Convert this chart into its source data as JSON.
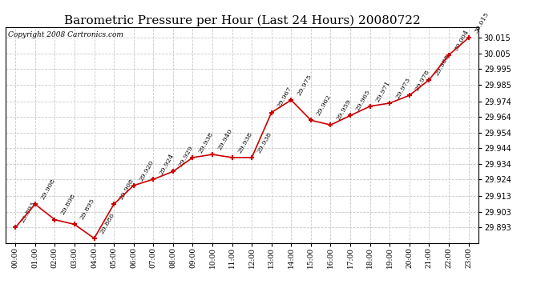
{
  "title": "Barometric Pressure per Hour (Last 24 Hours) 20080722",
  "copyright": "Copyright 2008 Cartronics.com",
  "hours": [
    0,
    1,
    2,
    3,
    4,
    5,
    6,
    7,
    8,
    9,
    10,
    11,
    12,
    13,
    14,
    15,
    16,
    17,
    18,
    19,
    20,
    21,
    22,
    23
  ],
  "values": [
    29.893,
    29.908,
    29.898,
    29.895,
    29.886,
    29.908,
    29.92,
    29.924,
    29.929,
    29.938,
    29.94,
    29.938,
    29.938,
    29.967,
    29.975,
    29.962,
    29.959,
    29.965,
    29.971,
    29.973,
    29.978,
    29.988,
    30.004,
    30.015
  ],
  "ylim_min": 29.883,
  "ylim_max": 30.022,
  "yticks": [
    29.893,
    29.903,
    29.913,
    29.924,
    29.934,
    29.944,
    29.954,
    29.964,
    29.974,
    29.985,
    29.995,
    30.005,
    30.015
  ],
  "line_color": "#cc0000",
  "marker_color": "#cc0000",
  "bg_color": "#ffffff",
  "plot_bg_color": "#ffffff",
  "grid_color": "#c8c8c8",
  "title_fontsize": 11,
  "copyright_fontsize": 6.5,
  "label_fontsize": 6
}
